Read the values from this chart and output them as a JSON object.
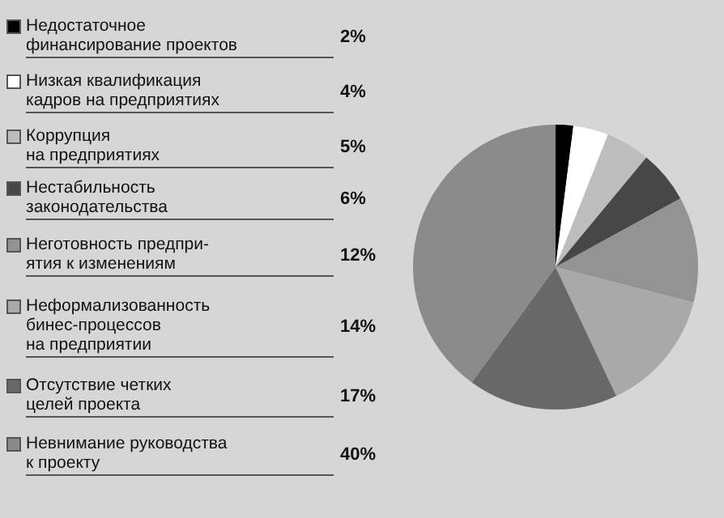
{
  "chart_data": {
    "type": "pie",
    "categories": [
      "Недостаточное\nфинансирование проектов",
      "Низкая квалификация\nкадров на предприятиях",
      "Коррупция\nна предприятиях",
      "Нестабильность\nзаконодательства",
      "Неготовность предпри-\nятия к изменениям",
      "Неформализованность\nбинес-процессов\nна предприятии",
      "Отсутствие четких\nцелей проекта",
      "Невнимание руководства\nк проекту"
    ],
    "values": [
      2,
      4,
      5,
      6,
      12,
      14,
      17,
      40
    ],
    "colors": [
      "#000000",
      "#ffffff",
      "#bdbdbd",
      "#474747",
      "#939393",
      "#a9a9a9",
      "#686868",
      "#8a8a8a"
    ],
    "value_labels": [
      "2%",
      "4%",
      "5%",
      "6%",
      "12%",
      "14%",
      "17%",
      "40%"
    ],
    "legend": "left"
  }
}
